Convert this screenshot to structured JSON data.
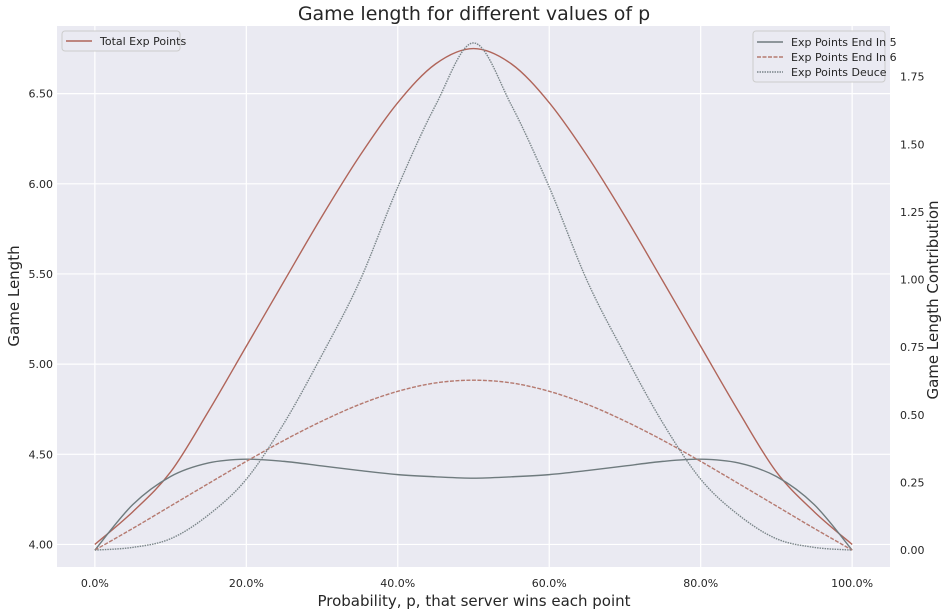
{
  "chart_data": {
    "type": "line",
    "title": "Game length for different values of p",
    "xlabel": "Probability, p, that server wins each point",
    "ylabel_left": "Game Length",
    "ylabel_right": "Game Length Contribution",
    "xlim": [
      -0.05,
      1.05
    ],
    "ylim_left": [
      3.875,
      6.875
    ],
    "ylim_right": [
      -0.0625,
      1.9375
    ],
    "x_ticks": [
      0,
      0.2,
      0.4,
      0.6,
      0.8,
      1.0
    ],
    "x_tick_labels": [
      "0.0%",
      "20.0%",
      "40.0%",
      "60.0%",
      "80.0%",
      "100.0%"
    ],
    "y_left_ticks": [
      4.0,
      4.5,
      5.0,
      5.5,
      6.0,
      6.5
    ],
    "y_left_tick_labels": [
      "4.00",
      "4.50",
      "5.00",
      "5.50",
      "6.00",
      "6.50"
    ],
    "y_right_ticks": [
      0,
      0.25,
      0.5,
      0.75,
      1.0,
      1.25,
      1.5,
      1.75
    ],
    "y_right_tick_labels": [
      "0.00",
      "0.25",
      "0.50",
      "0.75",
      "1.00",
      "1.25",
      "1.50",
      "1.75"
    ],
    "grid": true,
    "x": [
      0.0,
      0.05,
      0.1,
      0.15,
      0.2,
      0.25,
      0.3,
      0.35,
      0.4,
      0.45,
      0.5,
      0.55,
      0.6,
      0.65,
      0.7,
      0.75,
      0.8,
      0.85,
      0.9,
      0.95,
      1.0
    ],
    "series": [
      {
        "name": "Total Exp Points",
        "axis": "left",
        "color": "#b0655a",
        "style": "solid",
        "legend": "top-left",
        "values": [
          4.0,
          4.181,
          4.402,
          4.738,
          5.099,
          5.461,
          5.82,
          6.156,
          6.45,
          6.665,
          6.75,
          6.665,
          6.45,
          6.156,
          5.82,
          5.461,
          5.099,
          4.738,
          4.402,
          4.181,
          4.0
        ]
      },
      {
        "name": "Exp Points End In 5",
        "axis": "right",
        "color": "#6f7b7e",
        "style": "solid",
        "legend": "top-right",
        "values": [
          0.0,
          0.168,
          0.272,
          0.322,
          0.336,
          0.328,
          0.311,
          0.294,
          0.279,
          0.271,
          0.266,
          0.271,
          0.279,
          0.294,
          0.311,
          0.328,
          0.336,
          0.322,
          0.272,
          0.168,
          0.0
        ]
      },
      {
        "name": "Exp Points End In 6",
        "axis": "right",
        "color": "#b57a70",
        "style": "dashed",
        "legend": "top-right",
        "values": [
          0.0,
          0.08,
          0.163,
          0.246,
          0.328,
          0.406,
          0.477,
          0.539,
          0.587,
          0.618,
          0.628,
          0.618,
          0.587,
          0.539,
          0.477,
          0.406,
          0.328,
          0.246,
          0.163,
          0.08,
          0.0
        ]
      },
      {
        "name": "Exp Points Deuce",
        "axis": "right",
        "color": "#7a8589",
        "style": "dotted",
        "legend": "top-right",
        "values": [
          0.0,
          0.01,
          0.042,
          0.13,
          0.262,
          0.47,
          0.722,
          0.996,
          1.342,
          1.645,
          1.875,
          1.645,
          1.342,
          0.996,
          0.722,
          0.47,
          0.262,
          0.13,
          0.042,
          0.01,
          0.0
        ]
      }
    ]
  }
}
